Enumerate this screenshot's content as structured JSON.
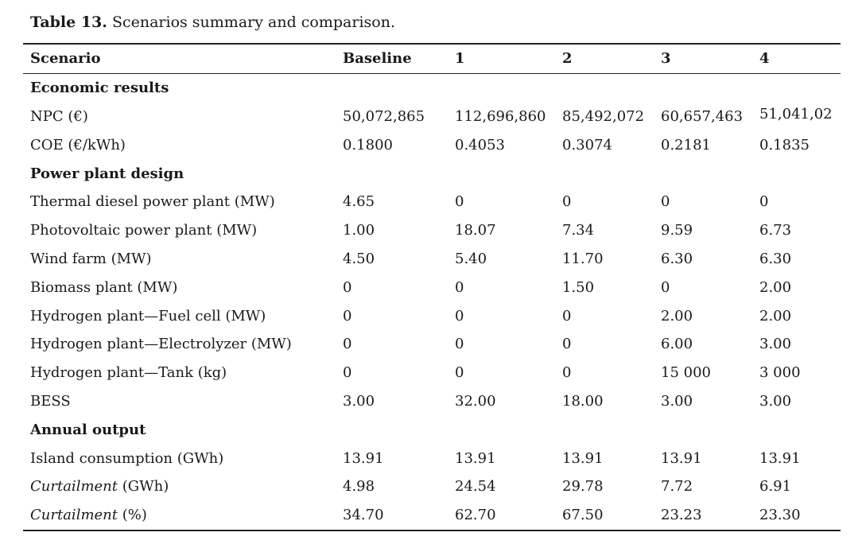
{
  "caption": {
    "label": "Table 13.",
    "text": "Scenarios summary and comparison."
  },
  "table": {
    "headers": [
      "Scenario",
      "Baseline",
      "1",
      "2",
      "3",
      "4"
    ],
    "sections": [
      {
        "title": "Economic results",
        "rows": [
          {
            "label": "NPC (€)",
            "values": [
              "50,072,865",
              "112,696,860",
              "85,492,072",
              "60,657,463",
              "51,041,02"
            ]
          },
          {
            "label": "COE (€/kWh)",
            "values": [
              "0.1800",
              "0.4053",
              "0.3074",
              "0.2181",
              "0.1835"
            ]
          }
        ]
      },
      {
        "title": "Power plant design",
        "rows": [
          {
            "label": "Thermal diesel power plant (MW)",
            "values": [
              "4.65",
              "0",
              "0",
              "0",
              "0"
            ]
          },
          {
            "label": "Photovoltaic power plant (MW)",
            "values": [
              "1.00",
              "18.07",
              "7.34",
              "9.59",
              "6.73"
            ]
          },
          {
            "label": "Wind farm (MW)",
            "values": [
              "4.50",
              "5.40",
              "11.70",
              "6.30",
              "6.30"
            ]
          },
          {
            "label": "Biomass plant (MW)",
            "values": [
              "0",
              "0",
              "1.50",
              "0",
              "2.00"
            ]
          },
          {
            "label": "Hydrogen plant—Fuel cell (MW)",
            "values": [
              "0",
              "0",
              "0",
              "2.00",
              "2.00"
            ]
          },
          {
            "label": "Hydrogen plant—Electrolyzer (MW)",
            "values": [
              "0",
              "0",
              "0",
              "6.00",
              "3.00"
            ]
          },
          {
            "label": "Hydrogen plant—Tank (kg)",
            "values": [
              "0",
              "0",
              "0",
              "15 000",
              "3 000"
            ]
          },
          {
            "label": "BESS",
            "values": [
              "3.00",
              "32.00",
              "18.00",
              "3.00",
              "3.00"
            ]
          }
        ]
      },
      {
        "title": "Annual output",
        "rows": [
          {
            "label": "Island consumption (GWh)",
            "values": [
              "13.91",
              "13.91",
              "13.91",
              "13.91",
              "13.91"
            ]
          },
          {
            "label_italic": "Curtailment",
            "label_rest": " (GWh)",
            "values": [
              "4.98",
              "24.54",
              "29.78",
              "7.72",
              "6.91"
            ]
          },
          {
            "label_italic": "Curtailment",
            "label_rest": " (%)",
            "values": [
              "34.70",
              "62.70",
              "67.50",
              "23.23",
              "23.30"
            ]
          }
        ]
      }
    ]
  }
}
